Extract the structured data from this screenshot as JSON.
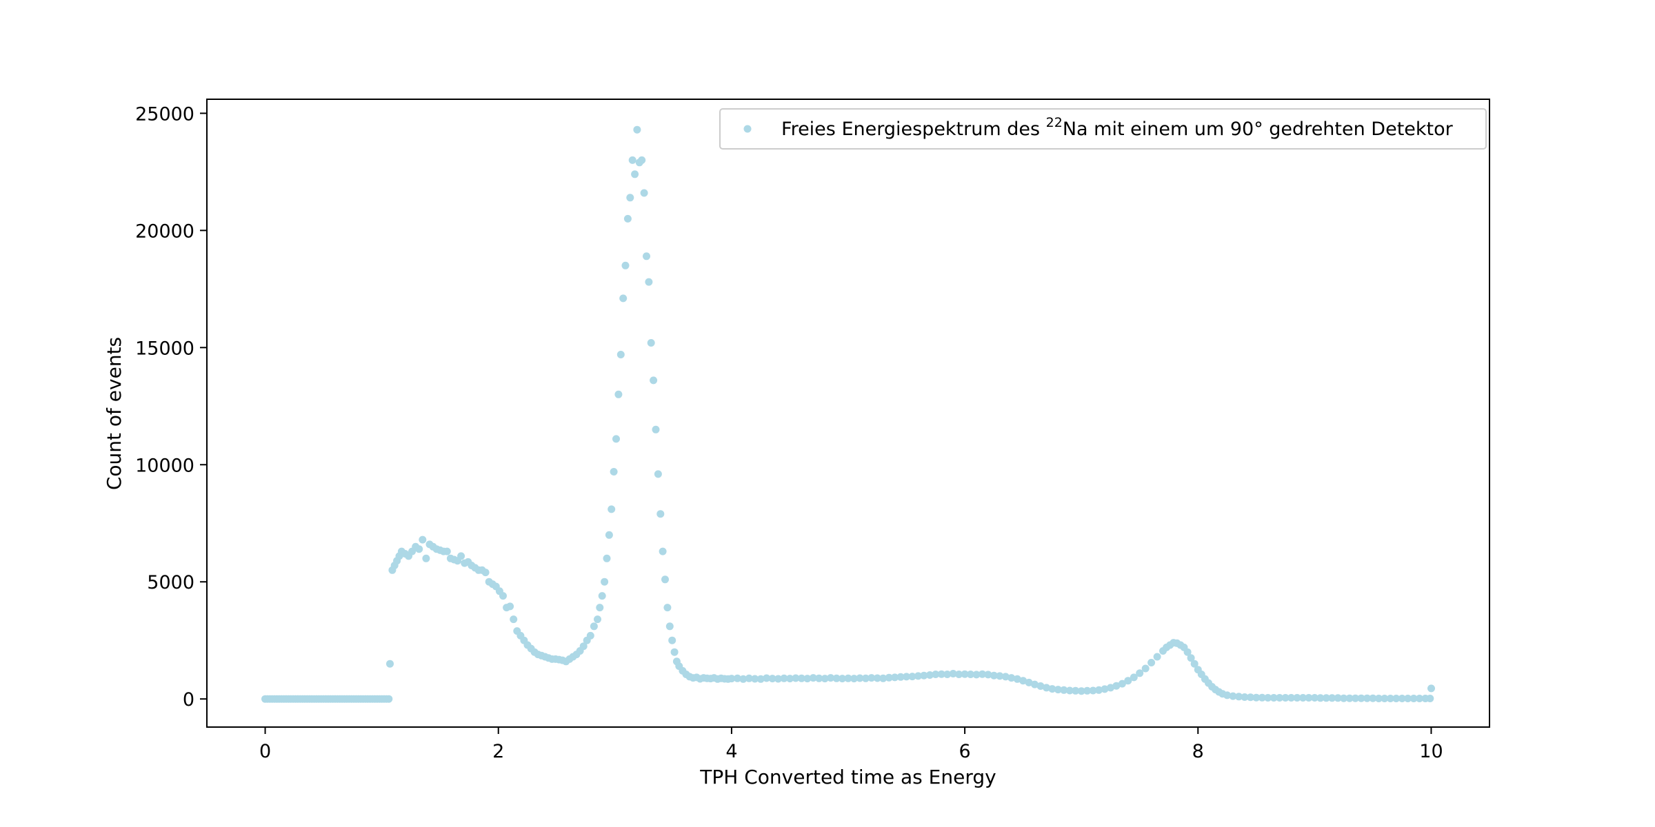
{
  "chart_data": {
    "type": "scatter",
    "xlabel": "TPH Converted time as Energy",
    "ylabel": "Count of events",
    "xlim": [
      -0.5,
      10.5
    ],
    "ylim": [
      -1200,
      25600
    ],
    "x_ticks": [
      0,
      2,
      4,
      6,
      8,
      10
    ],
    "y_ticks": [
      0,
      5000,
      10000,
      15000,
      20000,
      25000
    ],
    "grid": false,
    "legend_position": "top-right",
    "marker_color": "#add8e6",
    "series": [
      {
        "name_parts": {
          "before": "Freies Energiespektrum des ",
          "sup": "22",
          "after": "Na mit einem um 90° gedrehten Detektor"
        },
        "points": [
          [
            0.0,
            0
          ],
          [
            0.02,
            0
          ],
          [
            0.04,
            0
          ],
          [
            0.06,
            0
          ],
          [
            0.08,
            0
          ],
          [
            0.1,
            0
          ],
          [
            0.12,
            0
          ],
          [
            0.14,
            0
          ],
          [
            0.16,
            0
          ],
          [
            0.18,
            0
          ],
          [
            0.2,
            0
          ],
          [
            0.22,
            0
          ],
          [
            0.24,
            0
          ],
          [
            0.26,
            0
          ],
          [
            0.28,
            0
          ],
          [
            0.3,
            0
          ],
          [
            0.32,
            0
          ],
          [
            0.34,
            0
          ],
          [
            0.36,
            0
          ],
          [
            0.38,
            0
          ],
          [
            0.4,
            0
          ],
          [
            0.42,
            0
          ],
          [
            0.44,
            0
          ],
          [
            0.46,
            0
          ],
          [
            0.48,
            0
          ],
          [
            0.5,
            0
          ],
          [
            0.52,
            0
          ],
          [
            0.54,
            0
          ],
          [
            0.56,
            0
          ],
          [
            0.58,
            0
          ],
          [
            0.6,
            0
          ],
          [
            0.62,
            0
          ],
          [
            0.64,
            0
          ],
          [
            0.66,
            0
          ],
          [
            0.68,
            0
          ],
          [
            0.7,
            0
          ],
          [
            0.72,
            0
          ],
          [
            0.74,
            0
          ],
          [
            0.76,
            0
          ],
          [
            0.78,
            0
          ],
          [
            0.8,
            0
          ],
          [
            0.82,
            0
          ],
          [
            0.84,
            0
          ],
          [
            0.86,
            0
          ],
          [
            0.88,
            0
          ],
          [
            0.9,
            0
          ],
          [
            0.92,
            0
          ],
          [
            0.94,
            0
          ],
          [
            0.96,
            0
          ],
          [
            0.98,
            0
          ],
          [
            1.0,
            0
          ],
          [
            1.02,
            0
          ],
          [
            1.04,
            0
          ],
          [
            1.06,
            0
          ],
          [
            1.07,
            1500
          ],
          [
            1.09,
            5500
          ],
          [
            1.11,
            5700
          ],
          [
            1.13,
            5900
          ],
          [
            1.15,
            6100
          ],
          [
            1.17,
            6300
          ],
          [
            1.2,
            6200
          ],
          [
            1.23,
            6100
          ],
          [
            1.26,
            6300
          ],
          [
            1.29,
            6500
          ],
          [
            1.32,
            6400
          ],
          [
            1.35,
            6800
          ],
          [
            1.38,
            6000
          ],
          [
            1.41,
            6600
          ],
          [
            1.44,
            6500
          ],
          [
            1.47,
            6400
          ],
          [
            1.5,
            6350
          ],
          [
            1.53,
            6300
          ],
          [
            1.56,
            6300
          ],
          [
            1.59,
            6000
          ],
          [
            1.62,
            5950
          ],
          [
            1.65,
            5900
          ],
          [
            1.68,
            6100
          ],
          [
            1.71,
            5800
          ],
          [
            1.74,
            5850
          ],
          [
            1.77,
            5700
          ],
          [
            1.8,
            5600
          ],
          [
            1.83,
            5500
          ],
          [
            1.86,
            5500
          ],
          [
            1.89,
            5400
          ],
          [
            1.92,
            5000
          ],
          [
            1.95,
            4900
          ],
          [
            1.98,
            4800
          ],
          [
            2.01,
            4600
          ],
          [
            2.04,
            4400
          ],
          [
            2.07,
            3900
          ],
          [
            2.1,
            3950
          ],
          [
            2.13,
            3400
          ],
          [
            2.16,
            2900
          ],
          [
            2.19,
            2700
          ],
          [
            2.22,
            2500
          ],
          [
            2.25,
            2300
          ],
          [
            2.28,
            2150
          ],
          [
            2.31,
            2000
          ],
          [
            2.34,
            1900
          ],
          [
            2.37,
            1850
          ],
          [
            2.4,
            1800
          ],
          [
            2.43,
            1750
          ],
          [
            2.46,
            1700
          ],
          [
            2.49,
            1700
          ],
          [
            2.52,
            1680
          ],
          [
            2.55,
            1650
          ],
          [
            2.58,
            1600
          ],
          [
            2.61,
            1700
          ],
          [
            2.64,
            1800
          ],
          [
            2.67,
            1900
          ],
          [
            2.7,
            2050
          ],
          [
            2.73,
            2250
          ],
          [
            2.76,
            2500
          ],
          [
            2.79,
            2700
          ],
          [
            2.82,
            3100
          ],
          [
            2.85,
            3400
          ],
          [
            2.87,
            3900
          ],
          [
            2.89,
            4400
          ],
          [
            2.91,
            5000
          ],
          [
            2.93,
            6000
          ],
          [
            2.95,
            7000
          ],
          [
            2.97,
            8100
          ],
          [
            2.99,
            9700
          ],
          [
            3.01,
            11100
          ],
          [
            3.03,
            13000
          ],
          [
            3.05,
            14700
          ],
          [
            3.07,
            17100
          ],
          [
            3.09,
            18500
          ],
          [
            3.11,
            20500
          ],
          [
            3.13,
            21400
          ],
          [
            3.15,
            23000
          ],
          [
            3.17,
            22400
          ],
          [
            3.19,
            24300
          ],
          [
            3.21,
            22900
          ],
          [
            3.23,
            23000
          ],
          [
            3.25,
            21600
          ],
          [
            3.27,
            18900
          ],
          [
            3.29,
            17800
          ],
          [
            3.31,
            15200
          ],
          [
            3.33,
            13600
          ],
          [
            3.35,
            11500
          ],
          [
            3.37,
            9600
          ],
          [
            3.39,
            7900
          ],
          [
            3.41,
            6300
          ],
          [
            3.43,
            5100
          ],
          [
            3.45,
            3900
          ],
          [
            3.47,
            3100
          ],
          [
            3.49,
            2500
          ],
          [
            3.51,
            2000
          ],
          [
            3.53,
            1600
          ],
          [
            3.55,
            1400
          ],
          [
            3.58,
            1200
          ],
          [
            3.61,
            1050
          ],
          [
            3.64,
            950
          ],
          [
            3.67,
            900
          ],
          [
            3.7,
            920
          ],
          [
            3.73,
            860
          ],
          [
            3.76,
            900
          ],
          [
            3.79,
            880
          ],
          [
            3.82,
            870
          ],
          [
            3.85,
            900
          ],
          [
            3.88,
            850
          ],
          [
            3.91,
            880
          ],
          [
            3.94,
            860
          ],
          [
            3.97,
            850
          ],
          [
            4.0,
            870
          ],
          [
            4.05,
            880
          ],
          [
            4.1,
            850
          ],
          [
            4.15,
            880
          ],
          [
            4.2,
            860
          ],
          [
            4.25,
            850
          ],
          [
            4.3,
            890
          ],
          [
            4.35,
            870
          ],
          [
            4.4,
            860
          ],
          [
            4.45,
            880
          ],
          [
            4.5,
            870
          ],
          [
            4.55,
            890
          ],
          [
            4.6,
            880
          ],
          [
            4.65,
            870
          ],
          [
            4.7,
            900
          ],
          [
            4.75,
            880
          ],
          [
            4.8,
            870
          ],
          [
            4.85,
            900
          ],
          [
            4.9,
            880
          ],
          [
            4.95,
            870
          ],
          [
            5.0,
            880
          ],
          [
            5.05,
            870
          ],
          [
            5.1,
            890
          ],
          [
            5.15,
            880
          ],
          [
            5.2,
            900
          ],
          [
            5.25,
            890
          ],
          [
            5.3,
            880
          ],
          [
            5.35,
            910
          ],
          [
            5.4,
            920
          ],
          [
            5.45,
            940
          ],
          [
            5.5,
            950
          ],
          [
            5.55,
            960
          ],
          [
            5.6,
            980
          ],
          [
            5.65,
            1000
          ],
          [
            5.7,
            1020
          ],
          [
            5.75,
            1050
          ],
          [
            5.8,
            1060
          ],
          [
            5.85,
            1050
          ],
          [
            5.9,
            1080
          ],
          [
            5.95,
            1050
          ],
          [
            6.0,
            1060
          ],
          [
            6.05,
            1050
          ],
          [
            6.1,
            1040
          ],
          [
            6.15,
            1060
          ],
          [
            6.2,
            1040
          ],
          [
            6.25,
            1000
          ],
          [
            6.3,
            980
          ],
          [
            6.35,
            950
          ],
          [
            6.4,
            900
          ],
          [
            6.45,
            850
          ],
          [
            6.5,
            780
          ],
          [
            6.55,
            700
          ],
          [
            6.6,
            620
          ],
          [
            6.65,
            550
          ],
          [
            6.7,
            480
          ],
          [
            6.75,
            430
          ],
          [
            6.8,
            400
          ],
          [
            6.85,
            380
          ],
          [
            6.9,
            360
          ],
          [
            6.95,
            350
          ],
          [
            7.0,
            340
          ],
          [
            7.05,
            350
          ],
          [
            7.1,
            360
          ],
          [
            7.15,
            380
          ],
          [
            7.2,
            420
          ],
          [
            7.25,
            480
          ],
          [
            7.3,
            560
          ],
          [
            7.35,
            650
          ],
          [
            7.4,
            780
          ],
          [
            7.45,
            920
          ],
          [
            7.5,
            1100
          ],
          [
            7.55,
            1300
          ],
          [
            7.6,
            1550
          ],
          [
            7.65,
            1800
          ],
          [
            7.7,
            2050
          ],
          [
            7.73,
            2200
          ],
          [
            7.76,
            2300
          ],
          [
            7.79,
            2400
          ],
          [
            7.82,
            2380
          ],
          [
            7.85,
            2300
          ],
          [
            7.88,
            2200
          ],
          [
            7.91,
            2000
          ],
          [
            7.94,
            1750
          ],
          [
            7.97,
            1500
          ],
          [
            8.0,
            1250
          ],
          [
            8.03,
            1050
          ],
          [
            8.06,
            850
          ],
          [
            8.09,
            680
          ],
          [
            8.12,
            520
          ],
          [
            8.15,
            400
          ],
          [
            8.18,
            300
          ],
          [
            8.21,
            220
          ],
          [
            8.25,
            160
          ],
          [
            8.3,
            120
          ],
          [
            8.35,
            100
          ],
          [
            8.4,
            80
          ],
          [
            8.45,
            70
          ],
          [
            8.5,
            60
          ],
          [
            8.55,
            55
          ],
          [
            8.6,
            50
          ],
          [
            8.65,
            50
          ],
          [
            8.7,
            50
          ],
          [
            8.75,
            50
          ],
          [
            8.8,
            50
          ],
          [
            8.85,
            50
          ],
          [
            8.9,
            50
          ],
          [
            8.95,
            50
          ],
          [
            9.0,
            50
          ],
          [
            9.05,
            40
          ],
          [
            9.1,
            40
          ],
          [
            9.15,
            40
          ],
          [
            9.2,
            40
          ],
          [
            9.25,
            30
          ],
          [
            9.3,
            30
          ],
          [
            9.35,
            30
          ],
          [
            9.4,
            30
          ],
          [
            9.45,
            30
          ],
          [
            9.5,
            30
          ],
          [
            9.55,
            20
          ],
          [
            9.6,
            20
          ],
          [
            9.65,
            20
          ],
          [
            9.7,
            20
          ],
          [
            9.75,
            20
          ],
          [
            9.8,
            20
          ],
          [
            9.85,
            20
          ],
          [
            9.9,
            20
          ],
          [
            9.95,
            20
          ],
          [
            9.99,
            20
          ],
          [
            10.0,
            450
          ]
        ]
      }
    ]
  }
}
